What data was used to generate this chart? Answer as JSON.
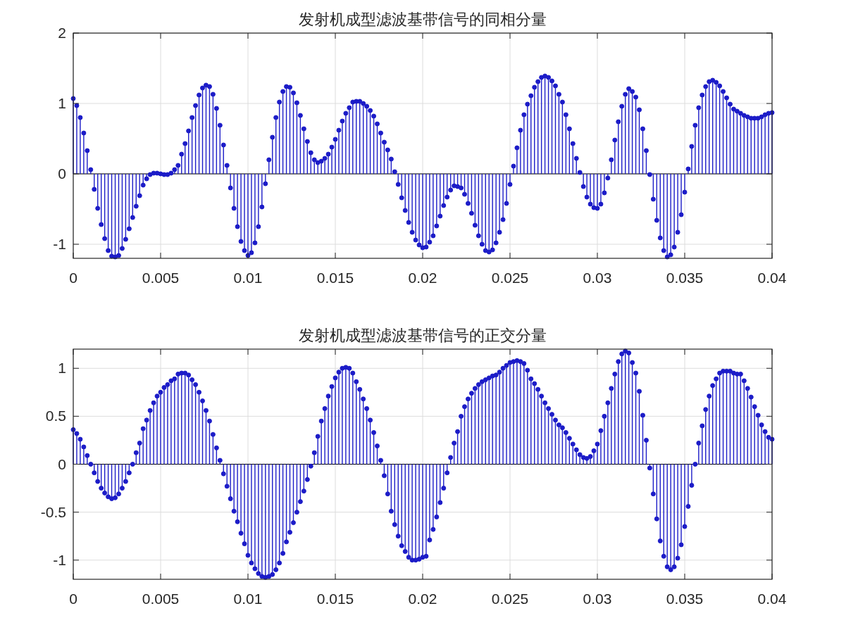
{
  "chart_data": [
    {
      "type": "lollipop",
      "title": "发射机成型滤波基带信号的同相分量",
      "x": [
        0,
        0.0002,
        0.0004,
        0.0006,
        0.0008,
        0.001,
        0.0012,
        0.0014,
        0.0016,
        0.0018,
        0.002,
        0.0022,
        0.0024,
        0.0026,
        0.0028,
        0.003,
        0.0032,
        0.0034,
        0.0036,
        0.0038,
        0.004,
        0.0042,
        0.0044,
        0.0046,
        0.0048,
        0.005,
        0.0052,
        0.0054,
        0.0056,
        0.0058,
        0.006,
        0.0062,
        0.0064,
        0.0066,
        0.0068,
        0.007,
        0.0072,
        0.0074,
        0.0076,
        0.0078,
        0.008,
        0.0082,
        0.0084,
        0.0086,
        0.0088,
        0.009,
        0.0092,
        0.0094,
        0.0096,
        0.0098,
        0.01,
        0.0102,
        0.0104,
        0.0106,
        0.0108,
        0.011,
        0.0112,
        0.0114,
        0.0116,
        0.0118,
        0.012,
        0.0122,
        0.0124,
        0.0126,
        0.0128,
        0.013,
        0.0132,
        0.0134,
        0.0136,
        0.0138,
        0.014,
        0.0142,
        0.0144,
        0.0146,
        0.0148,
        0.015,
        0.0152,
        0.0154,
        0.0156,
        0.0158,
        0.016,
        0.0162,
        0.0164,
        0.0166,
        0.0168,
        0.017,
        0.0172,
        0.0174,
        0.0176,
        0.0178,
        0.018,
        0.0182,
        0.0184,
        0.0186,
        0.0188,
        0.019,
        0.0192,
        0.0194,
        0.0196,
        0.0198,
        0.02,
        0.0202,
        0.0204,
        0.0206,
        0.0208,
        0.021,
        0.0212,
        0.0214,
        0.0216,
        0.0218,
        0.022,
        0.0222,
        0.0224,
        0.0226,
        0.0228,
        0.023,
        0.0232,
        0.0234,
        0.0236,
        0.0238,
        0.024,
        0.0242,
        0.0244,
        0.0246,
        0.0248,
        0.025,
        0.0252,
        0.0254,
        0.0256,
        0.0258,
        0.026,
        0.0262,
        0.0264,
        0.0266,
        0.0268,
        0.027,
        0.0272,
        0.0274,
        0.0276,
        0.0278,
        0.028,
        0.0282,
        0.0284,
        0.0286,
        0.0288,
        0.029,
        0.0292,
        0.0294,
        0.0296,
        0.0298,
        0.03,
        0.0302,
        0.0304,
        0.0306,
        0.0308,
        0.031,
        0.0312,
        0.0314,
        0.0316,
        0.0318,
        0.032,
        0.0322,
        0.0324,
        0.0326,
        0.0328,
        0.033,
        0.0332,
        0.0334,
        0.0336,
        0.0338,
        0.034,
        0.0342,
        0.0344,
        0.0346,
        0.0348,
        0.035,
        0.0352,
        0.0354,
        0.0356,
        0.0358,
        0.036,
        0.0362,
        0.0364,
        0.0366,
        0.0368,
        0.037,
        0.0372,
        0.0374,
        0.0376,
        0.0378,
        0.038,
        0.0382,
        0.0384,
        0.0386,
        0.0388,
        0.039,
        0.0392,
        0.0394,
        0.0396,
        0.0398,
        0.04
      ],
      "values": [
        1.07,
        0.97,
        0.8,
        0.58,
        0.33,
        0.06,
        -0.22,
        -0.49,
        -0.72,
        -0.92,
        -1.09,
        -1.17,
        -1.18,
        -1.16,
        -1.06,
        -0.93,
        -0.78,
        -0.62,
        -0.46,
        -0.31,
        -0.16,
        -0.07,
        -0.01,
        0.01,
        0.01,
        0.0,
        -0.01,
        -0.01,
        0.01,
        0.06,
        0.12,
        0.28,
        0.43,
        0.61,
        0.8,
        0.97,
        1.12,
        1.22,
        1.26,
        1.24,
        1.13,
        0.93,
        0.69,
        0.41,
        0.12,
        -0.2,
        -0.49,
        -0.75,
        -0.96,
        -1.09,
        -1.16,
        -1.12,
        -0.98,
        -0.75,
        -0.47,
        -0.14,
        0.2,
        0.52,
        0.8,
        1.02,
        1.17,
        1.24,
        1.23,
        1.15,
        1.01,
        0.83,
        0.64,
        0.46,
        0.3,
        0.2,
        0.16,
        0.18,
        0.22,
        0.28,
        0.38,
        0.49,
        0.62,
        0.75,
        0.86,
        0.94,
        1.02,
        1.03,
        1.03,
        1.0,
        0.96,
        0.9,
        0.82,
        0.71,
        0.58,
        0.45,
        0.34,
        0.21,
        0.03,
        -0.15,
        -0.34,
        -0.52,
        -0.69,
        -0.83,
        -0.94,
        -1.01,
        -1.05,
        -1.04,
        -0.97,
        -0.88,
        -0.74,
        -0.6,
        -0.45,
        -0.33,
        -0.23,
        -0.17,
        -0.18,
        -0.2,
        -0.29,
        -0.42,
        -0.56,
        -0.73,
        -0.88,
        -1.0,
        -1.09,
        -1.11,
        -1.08,
        -0.98,
        -0.83,
        -0.65,
        -0.42,
        -0.15,
        0.11,
        0.37,
        0.62,
        0.84,
        0.99,
        1.11,
        1.23,
        1.31,
        1.37,
        1.39,
        1.37,
        1.32,
        1.25,
        1.13,
        1.02,
        0.84,
        0.64,
        0.43,
        0.22,
        0.02,
        -0.18,
        -0.33,
        -0.43,
        -0.48,
        -0.49,
        -0.43,
        -0.27,
        -0.06,
        0.2,
        0.48,
        0.74,
        0.96,
        1.13,
        1.21,
        1.17,
        1.09,
        0.91,
        0.64,
        0.33,
        -0.01,
        -0.36,
        -0.66,
        -0.91,
        -1.09,
        -1.18,
        -1.15,
        -1.04,
        -0.83,
        -0.58,
        -0.26,
        0.07,
        0.39,
        0.69,
        0.94,
        1.12,
        1.24,
        1.31,
        1.33,
        1.3,
        1.25,
        1.17,
        1.08,
        0.99,
        0.92,
        0.89,
        0.86,
        0.83,
        0.81,
        0.79,
        0.79,
        0.79,
        0.81,
        0.84,
        0.86,
        0.87
      ],
      "color": "#1c1cc8",
      "marker": "circle",
      "grid": true,
      "xlim": [
        0,
        0.04
      ],
      "xticks": [
        0,
        0.005,
        0.01,
        0.015,
        0.02,
        0.025,
        0.03,
        0.035,
        0.04
      ],
      "ylim": [
        -1.2,
        2
      ],
      "yticks": [
        -1,
        0,
        1,
        2
      ]
    },
    {
      "type": "lollipop",
      "title": "发射机成型滤波基带信号的正交分量",
      "x": [
        0,
        0.0002,
        0.0004,
        0.0006,
        0.0008,
        0.001,
        0.0012,
        0.0014,
        0.0016,
        0.0018,
        0.002,
        0.0022,
        0.0024,
        0.0026,
        0.0028,
        0.003,
        0.0032,
        0.0034,
        0.0036,
        0.0038,
        0.004,
        0.0042,
        0.0044,
        0.0046,
        0.0048,
        0.005,
        0.0052,
        0.0054,
        0.0056,
        0.0058,
        0.006,
        0.0062,
        0.0064,
        0.0066,
        0.0068,
        0.007,
        0.0072,
        0.0074,
        0.0076,
        0.0078,
        0.008,
        0.0082,
        0.0084,
        0.0086,
        0.0088,
        0.009,
        0.0092,
        0.0094,
        0.0096,
        0.0098,
        0.01,
        0.0102,
        0.0104,
        0.0106,
        0.0108,
        0.011,
        0.0112,
        0.0114,
        0.0116,
        0.0118,
        0.012,
        0.0122,
        0.0124,
        0.0126,
        0.0128,
        0.013,
        0.0132,
        0.0134,
        0.0136,
        0.0138,
        0.014,
        0.0142,
        0.0144,
        0.0146,
        0.0148,
        0.015,
        0.0152,
        0.0154,
        0.0156,
        0.0158,
        0.016,
        0.0162,
        0.0164,
        0.0166,
        0.0168,
        0.017,
        0.0172,
        0.0174,
        0.0176,
        0.0178,
        0.018,
        0.0182,
        0.0184,
        0.0186,
        0.0188,
        0.019,
        0.0192,
        0.0194,
        0.0196,
        0.0198,
        0.02,
        0.0202,
        0.0204,
        0.0206,
        0.0208,
        0.021,
        0.0212,
        0.0214,
        0.0216,
        0.0218,
        0.022,
        0.0222,
        0.0224,
        0.0226,
        0.0228,
        0.023,
        0.0232,
        0.0234,
        0.0236,
        0.0238,
        0.024,
        0.0242,
        0.0244,
        0.0246,
        0.0248,
        0.025,
        0.0252,
        0.0254,
        0.0256,
        0.0258,
        0.026,
        0.0262,
        0.0264,
        0.0266,
        0.0268,
        0.027,
        0.0272,
        0.0274,
        0.0276,
        0.0278,
        0.028,
        0.0282,
        0.0284,
        0.0286,
        0.0288,
        0.029,
        0.0292,
        0.0294,
        0.0296,
        0.0298,
        0.03,
        0.0302,
        0.0304,
        0.0306,
        0.0308,
        0.031,
        0.0312,
        0.0314,
        0.0316,
        0.0318,
        0.032,
        0.0322,
        0.0324,
        0.0326,
        0.0328,
        0.033,
        0.0332,
        0.0334,
        0.0336,
        0.0338,
        0.034,
        0.0342,
        0.0344,
        0.0346,
        0.0348,
        0.035,
        0.0352,
        0.0354,
        0.0356,
        0.0358,
        0.036,
        0.0362,
        0.0364,
        0.0366,
        0.0368,
        0.037,
        0.0372,
        0.0374,
        0.0376,
        0.0378,
        0.038,
        0.0382,
        0.0384,
        0.0386,
        0.0388,
        0.039,
        0.0392,
        0.0394,
        0.0396,
        0.0398,
        0.04
      ],
      "values": [
        0.36,
        0.32,
        0.26,
        0.18,
        0.09,
        0.0,
        -0.09,
        -0.18,
        -0.25,
        -0.3,
        -0.34,
        -0.36,
        -0.35,
        -0.31,
        -0.25,
        -0.18,
        -0.09,
        0.0,
        0.12,
        0.22,
        0.37,
        0.46,
        0.56,
        0.64,
        0.71,
        0.75,
        0.8,
        0.83,
        0.87,
        0.89,
        0.94,
        0.95,
        0.95,
        0.93,
        0.88,
        0.83,
        0.75,
        0.66,
        0.56,
        0.45,
        0.31,
        0.17,
        0.04,
        -0.1,
        -0.23,
        -0.36,
        -0.49,
        -0.6,
        -0.72,
        -0.83,
        -0.95,
        -1.03,
        -1.09,
        -1.14,
        -1.17,
        -1.18,
        -1.17,
        -1.15,
        -1.1,
        -1.03,
        -0.93,
        -0.81,
        -0.71,
        -0.61,
        -0.5,
        -0.39,
        -0.28,
        -0.16,
        -0.02,
        0.12,
        0.29,
        0.45,
        0.58,
        0.71,
        0.81,
        0.9,
        0.96,
        1.0,
        1.01,
        1.0,
        0.95,
        0.86,
        0.78,
        0.68,
        0.58,
        0.46,
        0.33,
        0.19,
        0.04,
        -0.12,
        -0.31,
        -0.49,
        -0.63,
        -0.75,
        -0.85,
        -0.91,
        -0.97,
        -1.0,
        -1.0,
        -0.99,
        -0.97,
        -0.96,
        -0.79,
        -0.68,
        -0.55,
        -0.4,
        -0.25,
        -0.09,
        0.07,
        0.22,
        0.34,
        0.5,
        0.6,
        0.68,
        0.74,
        0.79,
        0.83,
        0.86,
        0.88,
        0.9,
        0.92,
        0.93,
        0.96,
        1.0,
        1.03,
        1.06,
        1.07,
        1.08,
        1.07,
        1.05,
        0.98,
        0.89,
        0.84,
        0.78,
        0.71,
        0.64,
        0.58,
        0.52,
        0.46,
        0.41,
        0.38,
        0.33,
        0.27,
        0.21,
        0.15,
        0.1,
        0.07,
        0.06,
        0.08,
        0.14,
        0.21,
        0.35,
        0.5,
        0.64,
        0.79,
        0.94,
        1.07,
        1.15,
        1.18,
        1.16,
        1.06,
        0.95,
        0.76,
        0.51,
        0.25,
        -0.04,
        -0.31,
        -0.57,
        -0.8,
        -0.96,
        -1.07,
        -1.1,
        -1.07,
        -0.98,
        -0.84,
        -0.65,
        -0.44,
        -0.22,
        0.0,
        0.22,
        0.4,
        0.57,
        0.71,
        0.82,
        0.89,
        0.95,
        0.97,
        0.97,
        0.97,
        0.95,
        0.94,
        0.94,
        0.87,
        0.79,
        0.7,
        0.6,
        0.51,
        0.41,
        0.34,
        0.28,
        0.26
      ],
      "color": "#1c1cc8",
      "marker": "circle",
      "grid": true,
      "xlim": [
        0,
        0.04
      ],
      "xticks": [
        0,
        0.005,
        0.01,
        0.015,
        0.02,
        0.025,
        0.03,
        0.035,
        0.04
      ],
      "ylim": [
        -1.2,
        1.2
      ],
      "yticks": [
        -1,
        -0.5,
        0,
        0.5,
        1
      ]
    }
  ]
}
